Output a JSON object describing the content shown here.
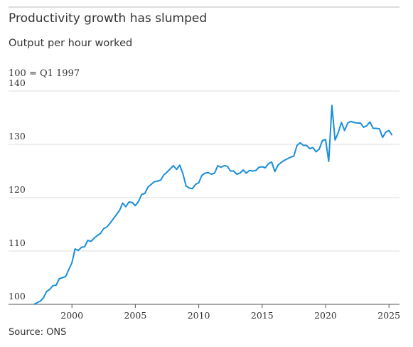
{
  "chart_data": {
    "type": "line",
    "title": "Productivity growth has slumped",
    "subtitle": "Output per hour worked",
    "ylabel": "100 = Q1 1997",
    "source": "Source: ONS",
    "x": [
      1997,
      1997.25,
      1997.5,
      1997.75,
      1998,
      1998.25,
      1998.5,
      1998.75,
      1999,
      1999.25,
      1999.5,
      1999.75,
      2000,
      2000.25,
      2000.5,
      2000.75,
      2001,
      2001.25,
      2001.5,
      2001.75,
      2002,
      2002.25,
      2002.5,
      2002.75,
      2003,
      2003.25,
      2003.5,
      2003.75,
      2004,
      2004.25,
      2004.5,
      2004.75,
      2005,
      2005.25,
      2005.5,
      2005.75,
      2006,
      2006.25,
      2006.5,
      2006.75,
      2007,
      2007.25,
      2007.5,
      2007.75,
      2008,
      2008.25,
      2008.5,
      2008.75,
      2009,
      2009.25,
      2009.5,
      2009.75,
      2010,
      2010.25,
      2010.5,
      2010.75,
      2011,
      2011.25,
      2011.5,
      2011.75,
      2012,
      2012.25,
      2012.5,
      2012.75,
      2013,
      2013.25,
      2013.5,
      2013.75,
      2014,
      2014.25,
      2014.5,
      2014.75,
      2015,
      2015.25,
      2015.5,
      2015.75,
      2016,
      2016.25,
      2016.5,
      2016.75,
      2017,
      2017.25,
      2017.5,
      2017.75,
      2018,
      2018.25,
      2018.5,
      2018.75,
      2019,
      2019.25,
      2019.5,
      2019.75,
      2020,
      2020.25,
      2020.5,
      2020.75,
      2021,
      2021.25,
      2021.5,
      2021.75,
      2022,
      2022.25,
      2022.5,
      2022.75,
      2023,
      2023.25,
      2023.5,
      2023.75,
      2024,
      2024.25,
      2024.5,
      2024.75,
      2025,
      2025.25
    ],
    "series": [
      {
        "name": "Output per hour worked",
        "color": "#1a8fd9",
        "values": [
          100,
          100.3,
          100.6,
          101.2,
          102.4,
          102.8,
          103.5,
          103.6,
          104.8,
          105,
          105.2,
          106.5,
          107.8,
          110.4,
          110.1,
          110.7,
          110.8,
          112,
          111.8,
          112.4,
          112.9,
          113.3,
          114.2,
          114.5,
          115.2,
          116,
          116.8,
          117.6,
          119,
          118.3,
          119.2,
          119.1,
          118.5,
          119.3,
          120.6,
          120.8,
          122,
          122.5,
          123,
          123.1,
          123.3,
          124.3,
          124.8,
          125.4,
          126,
          125.3,
          126.1,
          124.5,
          122.2,
          121.8,
          121.7,
          122.5,
          122.8,
          124.2,
          124.6,
          124.7,
          124.4,
          124.6,
          126,
          125.7,
          126,
          125.9,
          125,
          125,
          124.4,
          124.6,
          125.2,
          124.6,
          125.1,
          125,
          125.1,
          125.7,
          125.8,
          125.6,
          126.4,
          126.7,
          124.9,
          126.1,
          126.6,
          127,
          127.3,
          127.6,
          127.8,
          129.8,
          130.3,
          129.8,
          129.8,
          129.2,
          129.4,
          128.6,
          129.1,
          130.7,
          130.9,
          126.8,
          137.3,
          130.8,
          132.2,
          134.1,
          132.6,
          134,
          134.3,
          134.1,
          134,
          134,
          133.2,
          133.5,
          134.2,
          133,
          133,
          132.9,
          131.3,
          132.3,
          132.6,
          131.7
        ]
      }
    ],
    "xlim": [
      1995,
      2025.83
    ],
    "xticks": [
      2000,
      2005,
      2010,
      2015,
      2020,
      2025
    ],
    "ylim": [
      100,
      140
    ],
    "yticks": [
      100,
      110,
      120,
      130,
      140
    ],
    "grid": true
  }
}
